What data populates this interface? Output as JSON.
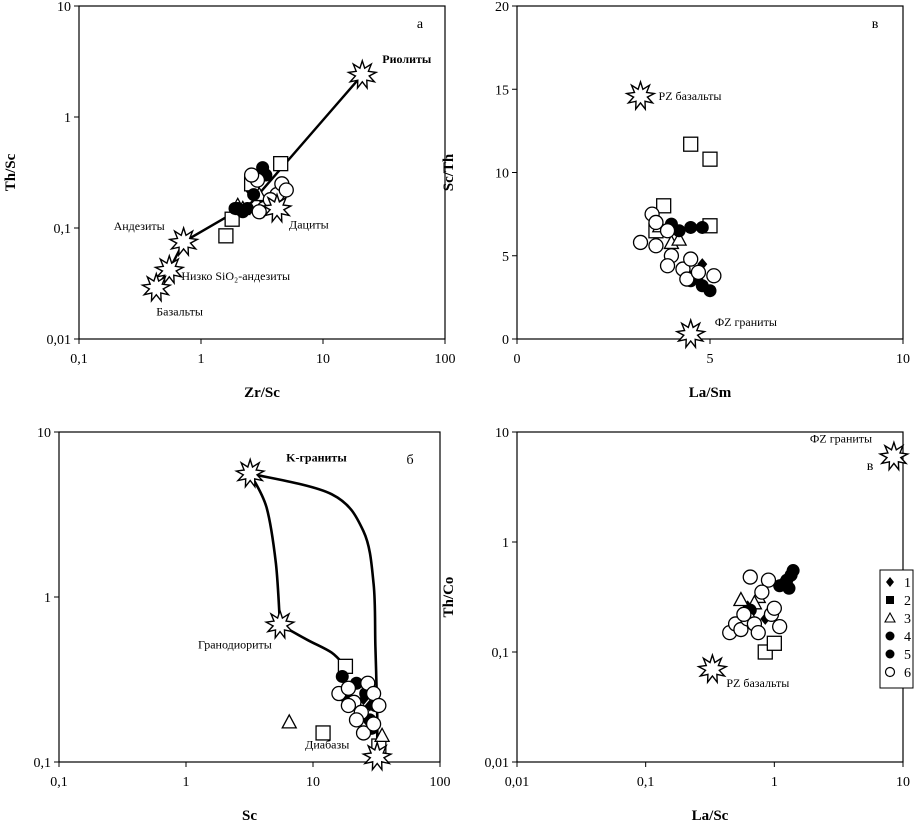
{
  "chart_data": [
    {
      "id": "panel-a",
      "type": "scatter",
      "panel_letter": "а",
      "xlabel": "Zr/Sc",
      "ylabel": "Th/Sc",
      "xscale": "log",
      "yscale": "log",
      "xlim": [
        0.1,
        100
      ],
      "ylim": [
        0.01,
        10
      ],
      "xticks": [
        {
          "v": 0.1,
          "label": "0,1"
        },
        {
          "v": 1,
          "label": "1"
        },
        {
          "v": 10,
          "label": "10"
        },
        {
          "v": 100,
          "label": "100"
        }
      ],
      "yticks": [
        {
          "v": 0.01,
          "label": "0,01"
        },
        {
          "v": 0.1,
          "label": "0,1"
        },
        {
          "v": 1,
          "label": "1"
        },
        {
          "v": 10,
          "label": "10"
        }
      ],
      "references": [
        {
          "label": "Риолиты",
          "x": 21,
          "y": 2.4,
          "bold": true,
          "dx": 20,
          "dy": -12
        },
        {
          "label": "Дациты",
          "x": 4.2,
          "y": 0.15,
          "bold": false,
          "dx": 12,
          "dy": 20
        },
        {
          "label": "Андезиты",
          "x": 0.72,
          "y": 0.075,
          "bold": false,
          "dx": -70,
          "dy": -12
        },
        {
          "label": "Низко SiO₂-андезиты",
          "x": 0.55,
          "y": 0.042,
          "bold": false,
          "dx": 12,
          "dy": 10
        },
        {
          "label": "Базальты",
          "x": 0.43,
          "y": 0.029,
          "bold": false,
          "dx": 0,
          "dy": 28
        }
      ],
      "trend": [
        [
          0.43,
          0.029
        ],
        [
          0.55,
          0.042
        ],
        [
          0.72,
          0.075
        ],
        [
          2.6,
          0.17
        ],
        [
          21,
          2.4
        ]
      ],
      "points": [
        {
          "s": "1",
          "x": 2.8,
          "y": 0.2
        },
        {
          "s": "1",
          "x": 3.2,
          "y": 0.18
        },
        {
          "s": "1",
          "x": 2.5,
          "y": 0.22
        },
        {
          "s": "2",
          "x": 1.6,
          "y": 0.085
        },
        {
          "s": "2",
          "x": 1.8,
          "y": 0.12
        },
        {
          "s": "2",
          "x": 4.5,
          "y": 0.38
        },
        {
          "s": "2",
          "x": 2.6,
          "y": 0.25
        },
        {
          "s": "3",
          "x": 2.2,
          "y": 0.15
        },
        {
          "s": "3",
          "x": 3.0,
          "y": 0.2
        },
        {
          "s": "3",
          "x": 2.0,
          "y": 0.16
        },
        {
          "s": "4",
          "x": 2.0,
          "y": 0.15
        },
        {
          "s": "4",
          "x": 2.2,
          "y": 0.14
        },
        {
          "s": "4",
          "x": 2.7,
          "y": 0.2
        },
        {
          "s": "4",
          "x": 3.2,
          "y": 0.35
        },
        {
          "s": "4",
          "x": 2.9,
          "y": 0.28
        },
        {
          "s": "5",
          "x": 1.9,
          "y": 0.15
        },
        {
          "s": "5",
          "x": 2.4,
          "y": 0.15
        },
        {
          "s": "5",
          "x": 3.4,
          "y": 0.3
        },
        {
          "s": "6",
          "x": 2.9,
          "y": 0.27
        },
        {
          "s": "6",
          "x": 3.3,
          "y": 0.15
        },
        {
          "s": "6",
          "x": 4.2,
          "y": 0.2
        },
        {
          "s": "6",
          "x": 4.6,
          "y": 0.25
        },
        {
          "s": "6",
          "x": 5.0,
          "y": 0.22
        },
        {
          "s": "6",
          "x": 3.7,
          "y": 0.18
        },
        {
          "s": "6",
          "x": 2.6,
          "y": 0.3
        },
        {
          "s": "6",
          "x": 3.0,
          "y": 0.14
        }
      ]
    },
    {
      "id": "panel-v-top",
      "type": "scatter",
      "panel_letter": "в",
      "xlabel": "La/Sm",
      "ylabel": "Sc/Th",
      "xscale": "linear",
      "yscale": "linear",
      "xlim": [
        0,
        10
      ],
      "ylim": [
        0,
        20
      ],
      "xticks": [
        {
          "v": 0,
          "label": "0"
        },
        {
          "v": 5,
          "label": "5"
        },
        {
          "v": 10,
          "label": "10"
        }
      ],
      "yticks": [
        {
          "v": 0,
          "label": "0"
        },
        {
          "v": 5,
          "label": "5"
        },
        {
          "v": 10,
          "label": "10"
        },
        {
          "v": 15,
          "label": "15"
        },
        {
          "v": 20,
          "label": "20"
        }
      ],
      "references": [
        {
          "label": "PZ базальты",
          "x": 3.2,
          "y": 14.6,
          "bold": false,
          "dx": 18,
          "dy": 4
        },
        {
          "label": "ФZ граниты",
          "x": 4.5,
          "y": 0.3,
          "bold": false,
          "dx": 24,
          "dy": -8
        }
      ],
      "trend": [],
      "points": [
        {
          "s": "1",
          "x": 4.7,
          "y": 3.6
        },
        {
          "s": "1",
          "x": 4.3,
          "y": 4.2
        },
        {
          "s": "1",
          "x": 4.8,
          "y": 4.5
        },
        {
          "s": "2",
          "x": 3.8,
          "y": 8.0
        },
        {
          "s": "2",
          "x": 4.5,
          "y": 11.7
        },
        {
          "s": "2",
          "x": 5.0,
          "y": 10.8
        },
        {
          "s": "2",
          "x": 5.0,
          "y": 6.8
        },
        {
          "s": "2",
          "x": 3.6,
          "y": 6.5
        },
        {
          "s": "3",
          "x": 4.0,
          "y": 5.8
        },
        {
          "s": "3",
          "x": 4.2,
          "y": 6.0
        },
        {
          "s": "3",
          "x": 3.7,
          "y": 6.8
        },
        {
          "s": "4",
          "x": 4.5,
          "y": 6.7
        },
        {
          "s": "4",
          "x": 4.8,
          "y": 6.7
        },
        {
          "s": "4",
          "x": 4.6,
          "y": 3.8
        },
        {
          "s": "4",
          "x": 4.8,
          "y": 3.2
        },
        {
          "s": "4",
          "x": 5.0,
          "y": 2.9
        },
        {
          "s": "5",
          "x": 4.2,
          "y": 6.5
        },
        {
          "s": "5",
          "x": 4.5,
          "y": 3.5
        },
        {
          "s": "5",
          "x": 4.0,
          "y": 6.9
        },
        {
          "s": "6",
          "x": 3.5,
          "y": 7.5
        },
        {
          "s": "6",
          "x": 3.6,
          "y": 7.0
        },
        {
          "s": "6",
          "x": 3.9,
          "y": 6.5
        },
        {
          "s": "6",
          "x": 3.2,
          "y": 5.8
        },
        {
          "s": "6",
          "x": 3.6,
          "y": 5.6
        },
        {
          "s": "6",
          "x": 4.0,
          "y": 5.0
        },
        {
          "s": "6",
          "x": 3.9,
          "y": 4.4
        },
        {
          "s": "6",
          "x": 4.3,
          "y": 4.2
        },
        {
          "s": "6",
          "x": 4.5,
          "y": 4.8
        },
        {
          "s": "6",
          "x": 4.4,
          "y": 3.6
        },
        {
          "s": "6",
          "x": 5.1,
          "y": 3.8
        },
        {
          "s": "6",
          "x": 4.7,
          "y": 4.0
        }
      ]
    },
    {
      "id": "panel-b",
      "type": "scatter",
      "panel_letter": "б",
      "xlabel": "Sc",
      "ylabel": "Th/Sc",
      "xscale": "log",
      "yscale": "log",
      "xlim": [
        0.1,
        100
      ],
      "ylim": [
        0.1,
        10
      ],
      "xticks": [
        {
          "v": 0.1,
          "label": "0,1"
        },
        {
          "v": 1,
          "label": "1"
        },
        {
          "v": 10,
          "label": "10"
        },
        {
          "v": 100,
          "label": "100"
        }
      ],
      "yticks": [
        {
          "v": 0.1,
          "label": "0,1"
        },
        {
          "v": 1,
          "label": "1"
        },
        {
          "v": 10,
          "label": "10"
        }
      ],
      "references": [
        {
          "label": "K-граниты",
          "x": 3.2,
          "y": 5.6,
          "bold": true,
          "dx": 36,
          "dy": -12
        },
        {
          "label": "Гранодиориты",
          "x": 5.5,
          "y": 0.68,
          "bold": false,
          "dx": -82,
          "dy": 24
        },
        {
          "label": "Диабазы",
          "x": 32,
          "y": 0.108,
          "bold": false,
          "dx": -72,
          "dy": -8
        }
      ],
      "curves": [
        [
          [
            3.2,
            5.6
          ],
          [
            4.3,
            3.5
          ],
          [
            5.1,
            1.6
          ],
          [
            5.5,
            0.68
          ]
        ],
        [
          [
            5.5,
            0.68
          ],
          [
            9,
            0.55
          ],
          [
            14,
            0.46
          ],
          [
            18,
            0.38
          ]
        ],
        [
          [
            3.2,
            5.6
          ],
          [
            14,
            4.2
          ],
          [
            25,
            2.5
          ],
          [
            30,
            1.2
          ],
          [
            31,
            0.5
          ],
          [
            32,
            0.2
          ],
          [
            32,
            0.11
          ]
        ]
      ],
      "points": [
        {
          "s": "1",
          "x": 25,
          "y": 0.24
        },
        {
          "s": "1",
          "x": 28,
          "y": 0.22
        },
        {
          "s": "2",
          "x": 12,
          "y": 0.15
        },
        {
          "s": "2",
          "x": 18,
          "y": 0.38
        },
        {
          "s": "2",
          "x": 33,
          "y": 0.125
        },
        {
          "s": "3",
          "x": 6.5,
          "y": 0.175
        },
        {
          "s": "3",
          "x": 35,
          "y": 0.145
        },
        {
          "s": "4",
          "x": 17,
          "y": 0.33
        },
        {
          "s": "4",
          "x": 26,
          "y": 0.26
        },
        {
          "s": "4",
          "x": 29,
          "y": 0.16
        },
        {
          "s": "4",
          "x": 31,
          "y": 0.22
        },
        {
          "s": "5",
          "x": 18,
          "y": 0.25
        },
        {
          "s": "5",
          "x": 22,
          "y": 0.3
        },
        {
          "s": "5",
          "x": 28,
          "y": 0.18
        },
        {
          "s": "6",
          "x": 16,
          "y": 0.26
        },
        {
          "s": "6",
          "x": 19,
          "y": 0.28
        },
        {
          "s": "6",
          "x": 21,
          "y": 0.23
        },
        {
          "s": "6",
          "x": 24,
          "y": 0.2
        },
        {
          "s": "6",
          "x": 27,
          "y": 0.3
        },
        {
          "s": "6",
          "x": 30,
          "y": 0.26
        },
        {
          "s": "6",
          "x": 33,
          "y": 0.22
        },
        {
          "s": "6",
          "x": 25,
          "y": 0.15
        },
        {
          "s": "6",
          "x": 22,
          "y": 0.18
        },
        {
          "s": "6",
          "x": 30,
          "y": 0.17
        },
        {
          "s": "6",
          "x": 19,
          "y": 0.22
        }
      ]
    },
    {
      "id": "panel-v-bottom",
      "type": "scatter",
      "panel_letter": "в",
      "xlabel": "La/Sc",
      "ylabel": "Th/Co",
      "xscale": "log",
      "yscale": "log",
      "xlim": [
        0.01,
        10
      ],
      "ylim": [
        0.01,
        10
      ],
      "xticks": [
        {
          "v": 0.01,
          "label": "0,01"
        },
        {
          "v": 0.1,
          "label": "0,1"
        },
        {
          "v": 1,
          "label": "1"
        },
        {
          "v": 10,
          "label": "10"
        }
      ],
      "yticks": [
        {
          "v": 0.01,
          "label": "0,01"
        },
        {
          "v": 0.1,
          "label": "0,1"
        },
        {
          "v": 1,
          "label": "1"
        },
        {
          "v": 10,
          "label": "10"
        }
      ],
      "references": [
        {
          "label": "ФZ граниты",
          "x": 8.5,
          "y": 6.0,
          "bold": false,
          "dx": -84,
          "dy": -14
        },
        {
          "label": "PZ базальты",
          "x": 0.33,
          "y": 0.07,
          "bold": false,
          "dx": 14,
          "dy": 18
        }
      ],
      "trend": [],
      "points": [
        {
          "s": "1",
          "x": 0.62,
          "y": 0.26
        },
        {
          "s": "1",
          "x": 0.85,
          "y": 0.2
        },
        {
          "s": "2",
          "x": 0.85,
          "y": 0.1
        },
        {
          "s": "2",
          "x": 1.0,
          "y": 0.12
        },
        {
          "s": "3",
          "x": 0.55,
          "y": 0.3
        },
        {
          "s": "3",
          "x": 0.75,
          "y": 0.32
        },
        {
          "s": "3",
          "x": 0.7,
          "y": 0.28
        },
        {
          "s": "4",
          "x": 1.2,
          "y": 0.42
        },
        {
          "s": "4",
          "x": 1.35,
          "y": 0.5
        },
        {
          "s": "4",
          "x": 1.4,
          "y": 0.55
        },
        {
          "s": "4",
          "x": 1.3,
          "y": 0.38
        },
        {
          "s": "5",
          "x": 1.1,
          "y": 0.4
        },
        {
          "s": "5",
          "x": 1.25,
          "y": 0.45
        },
        {
          "s": "5",
          "x": 0.65,
          "y": 0.24
        },
        {
          "s": "6",
          "x": 0.45,
          "y": 0.15
        },
        {
          "s": "6",
          "x": 0.5,
          "y": 0.18
        },
        {
          "s": "6",
          "x": 0.55,
          "y": 0.16
        },
        {
          "s": "6",
          "x": 0.62,
          "y": 0.2
        },
        {
          "s": "6",
          "x": 0.7,
          "y": 0.18
        },
        {
          "s": "6",
          "x": 0.65,
          "y": 0.48
        },
        {
          "s": "6",
          "x": 0.9,
          "y": 0.45
        },
        {
          "s": "6",
          "x": 0.95,
          "y": 0.22
        },
        {
          "s": "6",
          "x": 1.0,
          "y": 0.25
        },
        {
          "s": "6",
          "x": 1.1,
          "y": 0.17
        },
        {
          "s": "6",
          "x": 0.8,
          "y": 0.35
        },
        {
          "s": "6",
          "x": 0.58,
          "y": 0.22
        },
        {
          "s": "6",
          "x": 0.75,
          "y": 0.15
        }
      ]
    }
  ],
  "legend": {
    "items": [
      {
        "s": "1",
        "label": "1"
      },
      {
        "s": "2",
        "label": "2"
      },
      {
        "s": "3",
        "label": "3"
      },
      {
        "s": "4",
        "label": "4"
      },
      {
        "s": "5",
        "label": "5"
      },
      {
        "s": "6",
        "label": "6"
      }
    ]
  }
}
